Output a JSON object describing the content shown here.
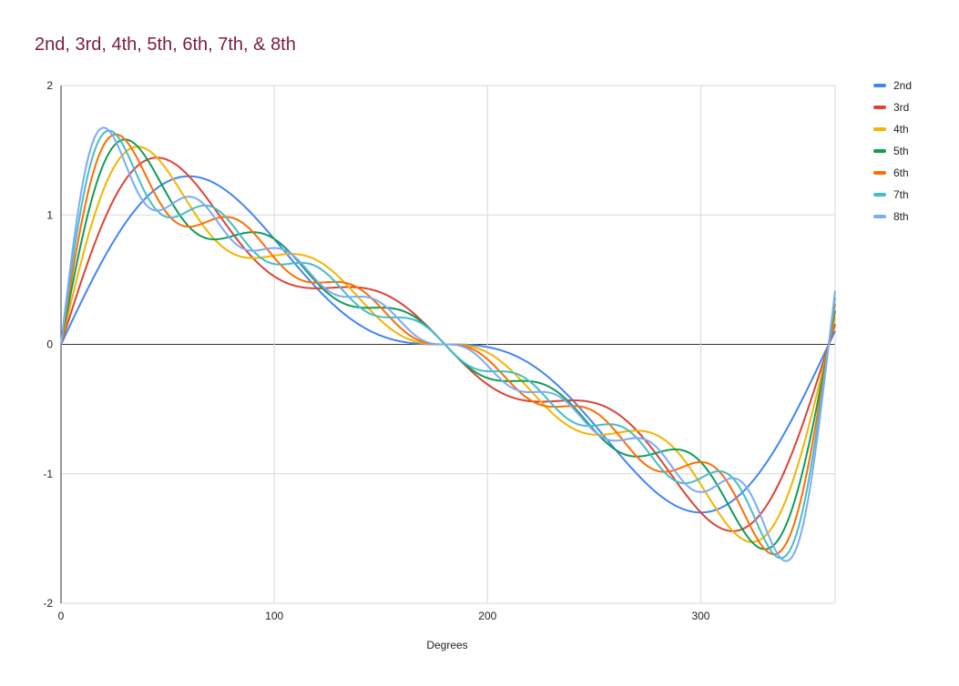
{
  "chart_data": {
    "type": "line",
    "title": "2nd, 3rd, 4th, 5th, 6th, 7th, & 8th",
    "xlabel": "Degrees",
    "ylabel": "",
    "xlim": [
      0,
      363
    ],
    "ylim": [
      -2,
      2
    ],
    "x_ticks": [
      0,
      100,
      200,
      300
    ],
    "y_ticks": [
      2,
      1,
      0,
      -1,
      -2
    ],
    "x_tick_labels": [
      "0",
      "100",
      "200",
      "300"
    ],
    "y_tick_labels": [
      "2",
      "1",
      "0",
      "-1",
      "-2"
    ],
    "grid": true,
    "legend_position": "right",
    "x_domain": [
      0,
      363
    ],
    "series": [
      {
        "name": "2nd",
        "color": "#4285f4",
        "harmonics": 2
      },
      {
        "name": "3rd",
        "color": "#db4437",
        "harmonics": 3
      },
      {
        "name": "4th",
        "color": "#f4b400",
        "harmonics": 4
      },
      {
        "name": "5th",
        "color": "#0f9d58",
        "harmonics": 5
      },
      {
        "name": "6th",
        "color": "#ff6d01",
        "harmonics": 6
      },
      {
        "name": "7th",
        "color": "#46bdc6",
        "harmonics": 7
      },
      {
        "name": "8th",
        "color": "#7baaf7",
        "harmonics": 8
      }
    ]
  }
}
